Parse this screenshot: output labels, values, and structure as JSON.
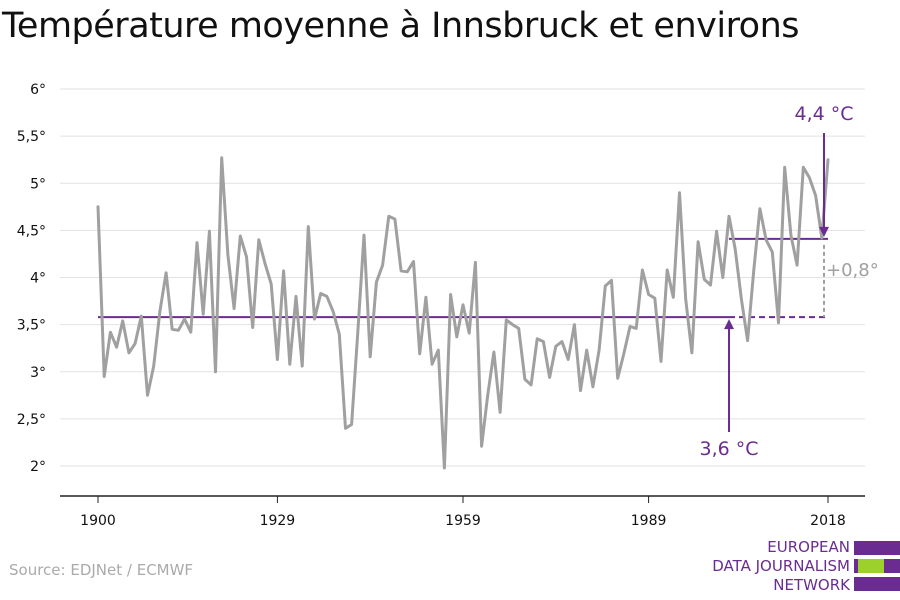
{
  "title": "Température moyenne à Innsbruck et environs",
  "source": "Source: EDJNet / ECMWF",
  "logo": {
    "lines": [
      "EUROPEAN",
      "DATA JOURNALISM",
      "NETWORK"
    ],
    "colors": {
      "primary": "#6b2c91",
      "accent": "#9bd12a"
    }
  },
  "colors": {
    "series": "#a0a0a0",
    "reference": "#6b2c91",
    "grid": "#e2e2e2",
    "axis": "#222222",
    "delta": "#a0a0a0"
  },
  "chart_data": {
    "type": "line",
    "title": "Température moyenne à Innsbruck et environs",
    "xlabel": "",
    "ylabel": "",
    "xlim": [
      1900,
      2018
    ],
    "ylim": [
      1.8,
      6.1
    ],
    "x_ticks": [
      "1900",
      "1929",
      "1959",
      "1989",
      "2018"
    ],
    "x_tick_values": [
      1900,
      1929,
      1959,
      1989,
      2018
    ],
    "y_ticks": [
      "2°",
      "2,5°",
      "3°",
      "3,5°",
      "4°",
      "4,5°",
      "5°",
      "5,5°",
      "6°"
    ],
    "y_tick_values": [
      2,
      2.5,
      3,
      3.5,
      4,
      4.5,
      5,
      5.5,
      6
    ],
    "grid": true,
    "series": [
      {
        "x_start": 1900,
        "values": [
          4.75,
          2.95,
          3.42,
          3.26,
          3.54,
          3.2,
          3.3,
          3.59,
          2.75,
          3.06,
          3.64,
          4.05,
          3.45,
          3.44,
          3.56,
          3.42,
          4.37,
          3.61,
          4.49,
          3.0,
          5.27,
          4.24,
          3.67,
          4.44,
          4.22,
          3.47,
          4.4,
          4.15,
          3.93,
          3.13,
          4.07,
          3.08,
          3.8,
          3.06,
          4.54,
          3.56,
          3.83,
          3.8,
          3.64,
          3.4,
          2.4,
          2.44,
          3.42,
          4.45,
          3.16,
          3.95,
          4.13,
          4.65,
          4.62,
          4.07,
          4.06,
          4.17,
          3.19,
          3.79,
          3.08,
          3.23,
          1.98,
          3.82,
          3.37,
          3.71,
          3.41,
          4.16,
          2.21,
          2.75,
          3.21,
          2.57,
          3.55,
          3.5,
          3.46,
          2.92,
          2.86,
          3.35,
          3.32,
          2.94,
          3.27,
          3.32,
          3.13,
          3.5,
          2.8,
          3.23,
          2.84,
          3.23,
          3.91,
          3.97,
          2.93,
          3.19,
          3.48,
          3.46,
          4.08,
          3.82,
          3.78,
          3.11,
          4.08,
          3.79,
          4.9,
          3.77,
          3.2,
          4.38,
          3.98,
          3.92,
          4.49,
          4.0,
          4.65,
          4.3,
          3.77,
          3.33,
          4.08,
          4.73,
          4.4,
          4.27,
          3.52,
          5.17,
          4.45,
          4.13,
          5.17,
          5.06,
          4.87,
          4.42,
          5.25
        ]
      }
    ],
    "reference_lines": [
      {
        "label": "3,6 °C",
        "value": 3.58,
        "x_from": 1900,
        "x_to": 2018,
        "solid_until": 2002
      },
      {
        "label": "4,4 °C",
        "value": 4.41,
        "x_from": 2002,
        "x_to": 2018
      }
    ],
    "delta_label": "+0,8°"
  }
}
